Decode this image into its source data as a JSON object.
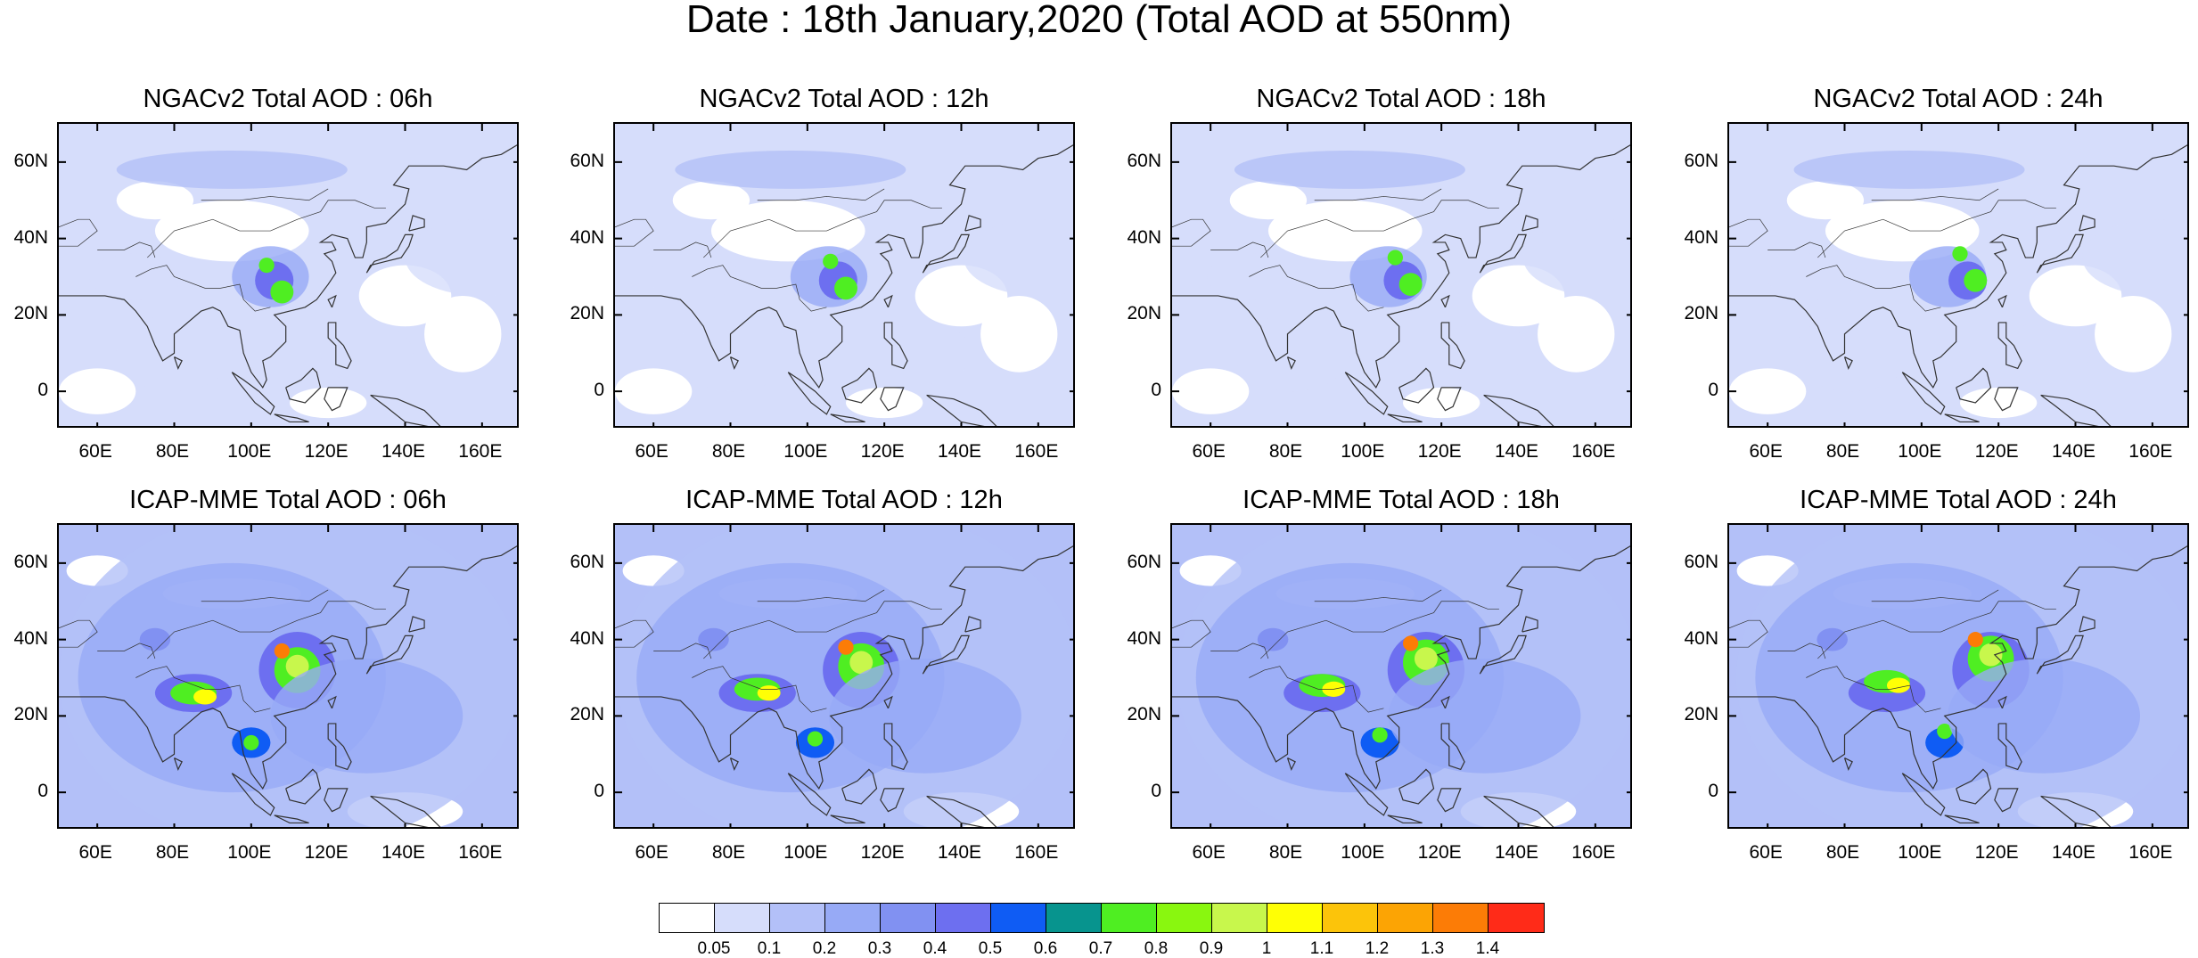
{
  "title": "Date : 18th January,2020 (Total AOD at 550nm)",
  "lat_ticks": [
    "60N",
    "40N",
    "20N",
    "0"
  ],
  "lon_ticks": [
    "60E",
    "80E",
    "100E",
    "120E",
    "140E",
    "160E"
  ],
  "panels": [
    {
      "title": "NGACv2 Total AOD : 06h",
      "model": "NGACv2",
      "hour": "06h"
    },
    {
      "title": "NGACv2 Total AOD : 12h",
      "model": "NGACv2",
      "hour": "12h"
    },
    {
      "title": "NGACv2 Total AOD : 18h",
      "model": "NGACv2",
      "hour": "18h"
    },
    {
      "title": "NGACv2 Total AOD : 24h",
      "model": "NGACv2",
      "hour": "24h"
    },
    {
      "title": "ICAP-MME Total AOD : 06h",
      "model": "ICAP-MME",
      "hour": "06h"
    },
    {
      "title": "ICAP-MME Total AOD : 12h",
      "model": "ICAP-MME",
      "hour": "12h"
    },
    {
      "title": "ICAP-MME Total AOD : 18h",
      "model": "ICAP-MME",
      "hour": "18h"
    },
    {
      "title": "ICAP-MME Total AOD : 24h",
      "model": "ICAP-MME",
      "hour": "24h"
    }
  ],
  "colorbar": {
    "labels": [
      "0.05",
      "0.1",
      "0.2",
      "0.3",
      "0.4",
      "0.5",
      "0.6",
      "0.7",
      "0.8",
      "0.9",
      "1",
      "1.1",
      "1.2",
      "1.3",
      "1.4"
    ],
    "colors": [
      "#ffffff",
      "#d6ddfb",
      "#b3c0f8",
      "#97aaf6",
      "#8191f2",
      "#6d6ff0",
      "#0f5cf4",
      "#07948e",
      "#4fee22",
      "#89f70f",
      "#c8f74c",
      "#ffff05",
      "#fcc40a",
      "#fca404",
      "#fc7c06",
      "#ff2b18"
    ]
  },
  "map_extent": {
    "lon_min": 50,
    "lon_max": 170,
    "lat_min": -10,
    "lat_max": 70
  }
}
